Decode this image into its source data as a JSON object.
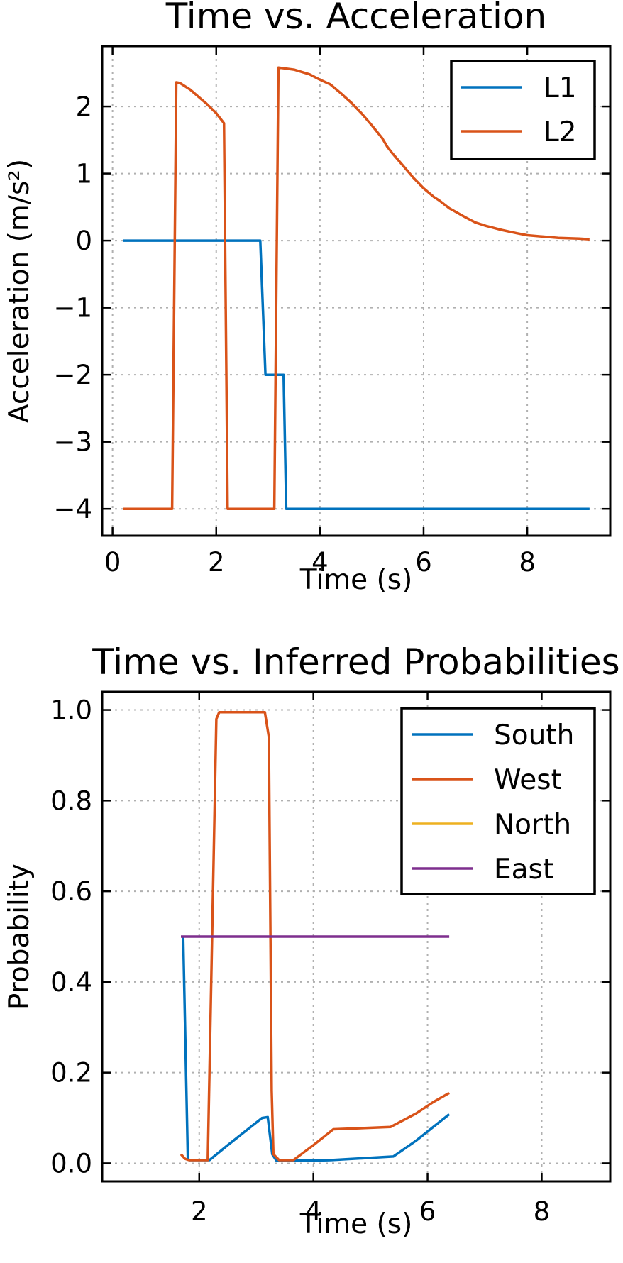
{
  "chart_data": [
    {
      "type": "line",
      "title": "Time vs. Acceleration",
      "xlabel": "Time (s)",
      "ylabel": "Acceleration (m/s²)",
      "xlim": [
        -0.2,
        9.6
      ],
      "ylim": [
        -4.4,
        2.9
      ],
      "xticks": [
        0,
        2,
        4,
        6,
        8
      ],
      "xtick_labels": [
        "0",
        "2",
        "4",
        "6",
        "8"
      ],
      "yticks": [
        -4,
        -3,
        -2,
        -1,
        0,
        1,
        2
      ],
      "ytick_labels": [
        "−4",
        "−3",
        "−2",
        "−1",
        "0",
        "1",
        "2"
      ],
      "grid": true,
      "legend_position": "top-right",
      "series": [
        {
          "name": "L1",
          "color": "#0072BD",
          "x": [
            0.2,
            2.85,
            2.95,
            3.3,
            3.35,
            9.2
          ],
          "y": [
            0,
            0,
            -2,
            -2,
            -4,
            -4
          ]
        },
        {
          "name": "L2",
          "color": "#D95319",
          "x": [
            0.2,
            1.15,
            1.23,
            1.3,
            1.5,
            1.8,
            2.0,
            2.15,
            2.22,
            3.12,
            3.2,
            3.5,
            3.8,
            4.0,
            4.2,
            4.4,
            4.6,
            4.8,
            5.0,
            5.2,
            5.3,
            5.4,
            5.6,
            5.8,
            6.0,
            6.2,
            6.3,
            6.5,
            6.8,
            7.0,
            7.2,
            7.3,
            7.5,
            7.8,
            8.0,
            8.3,
            8.6,
            9.0,
            9.2
          ],
          "y": [
            -4,
            -4,
            2.36,
            2.35,
            2.25,
            2.05,
            1.9,
            1.75,
            -4,
            -4,
            2.58,
            2.55,
            2.48,
            2.4,
            2.33,
            2.2,
            2.06,
            1.9,
            1.72,
            1.53,
            1.4,
            1.3,
            1.12,
            0.94,
            0.78,
            0.65,
            0.6,
            0.48,
            0.35,
            0.27,
            0.22,
            0.2,
            0.16,
            0.11,
            0.08,
            0.06,
            0.04,
            0.03,
            0.02
          ]
        }
      ]
    },
    {
      "type": "line",
      "title": "Time vs. Inferred Probabilities",
      "xlabel": "Time (s)",
      "ylabel": "Probability",
      "xlim": [
        0.3,
        9.2
      ],
      "ylim": [
        -0.04,
        1.04
      ],
      "xticks": [
        2,
        4,
        6,
        8
      ],
      "xtick_labels": [
        "2",
        "4",
        "6",
        "8"
      ],
      "yticks": [
        0.0,
        0.2,
        0.4,
        0.6,
        0.8,
        1.0
      ],
      "ytick_labels": [
        "0.0",
        "0.2",
        "0.4",
        "0.6",
        "0.8",
        "1.0"
      ],
      "grid": true,
      "legend_position": "top-right",
      "series": [
        {
          "name": "South",
          "color": "#0072BD",
          "x": [
            1.72,
            1.8,
            1.83,
            2.18,
            2.5,
            2.8,
            3.1,
            3.2,
            3.28,
            3.35,
            3.6,
            4.0,
            4.3,
            5.0,
            5.4,
            5.8,
            6.1,
            6.38
          ],
          "y": [
            0.5,
            0.01,
            0.007,
            0.007,
            0.04,
            0.07,
            0.1,
            0.102,
            0.02,
            0.006,
            0.006,
            0.006,
            0.007,
            0.012,
            0.015,
            0.05,
            0.08,
            0.108
          ]
        },
        {
          "name": "West",
          "color": "#D95319",
          "x": [
            1.68,
            1.75,
            1.82,
            2.15,
            2.3,
            2.35,
            3.15,
            3.22,
            3.27,
            3.3,
            3.4,
            3.65,
            4.0,
            4.35,
            5.35,
            5.8,
            6.1,
            6.38
          ],
          "y": [
            0.02,
            0.01,
            0.007,
            0.007,
            0.98,
            0.995,
            0.995,
            0.94,
            0.16,
            0.02,
            0.007,
            0.007,
            0.04,
            0.075,
            0.08,
            0.11,
            0.135,
            0.155
          ]
        },
        {
          "name": "North",
          "color": "#EDB120",
          "x": [],
          "y": []
        },
        {
          "name": "East",
          "color": "#7E2F8E",
          "x": [
            1.68,
            6.38
          ],
          "y": [
            0.5,
            0.5
          ]
        }
      ]
    }
  ]
}
